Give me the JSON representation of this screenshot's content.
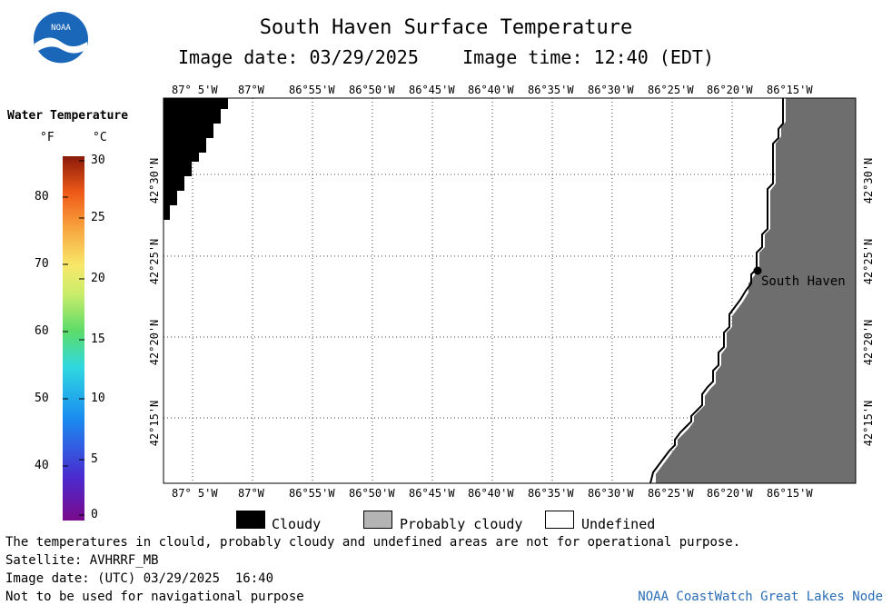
{
  "title": "South Haven Surface Temperature",
  "subtitle_date": "Image date: 03/29/2025",
  "subtitle_time": "Image time: 12:40 (EDT)",
  "logo_text": "NOAA",
  "scale": {
    "title": "Water Temperature",
    "unit_f": "°F",
    "unit_c": "°C",
    "f_ticks": [
      "80",
      "70",
      "60",
      "50",
      "40"
    ],
    "c_ticks": [
      "30",
      "25",
      "20",
      "15",
      "10",
      "5",
      "0"
    ]
  },
  "map": {
    "lon_labels": [
      "87° 5'W",
      "87°W",
      "86°55'W",
      "86°50'W",
      "86°45'W",
      "86°40'W",
      "86°35'W",
      "86°30'W",
      "86°25'W",
      "86°20'W",
      "86°15'W"
    ],
    "lat_labels": [
      "42°30'N",
      "42°25'N",
      "42°20'N",
      "42°15'N"
    ],
    "place_label": "South Haven"
  },
  "legend": {
    "cloudy": "Cloudy",
    "probably_cloudy": "Probably cloudy",
    "undefined": "Undefined"
  },
  "footer": {
    "note": "The temperatures in clould, probably cloudy and undefined areas are not for operational purpose.",
    "satellite": "Satellite: AVHRRF_MB",
    "utc_date": "Image date: (UTC) 03/29/2025  16:40",
    "nav": "Not to be used for navigational purpose",
    "credit": "NOAA CoastWatch Great Lakes Node"
  },
  "colors": {
    "land": "#6e6e6e",
    "cloud": "#000000",
    "probably_cloudy": "#b4b4b4",
    "credit": "#2a6db4"
  }
}
